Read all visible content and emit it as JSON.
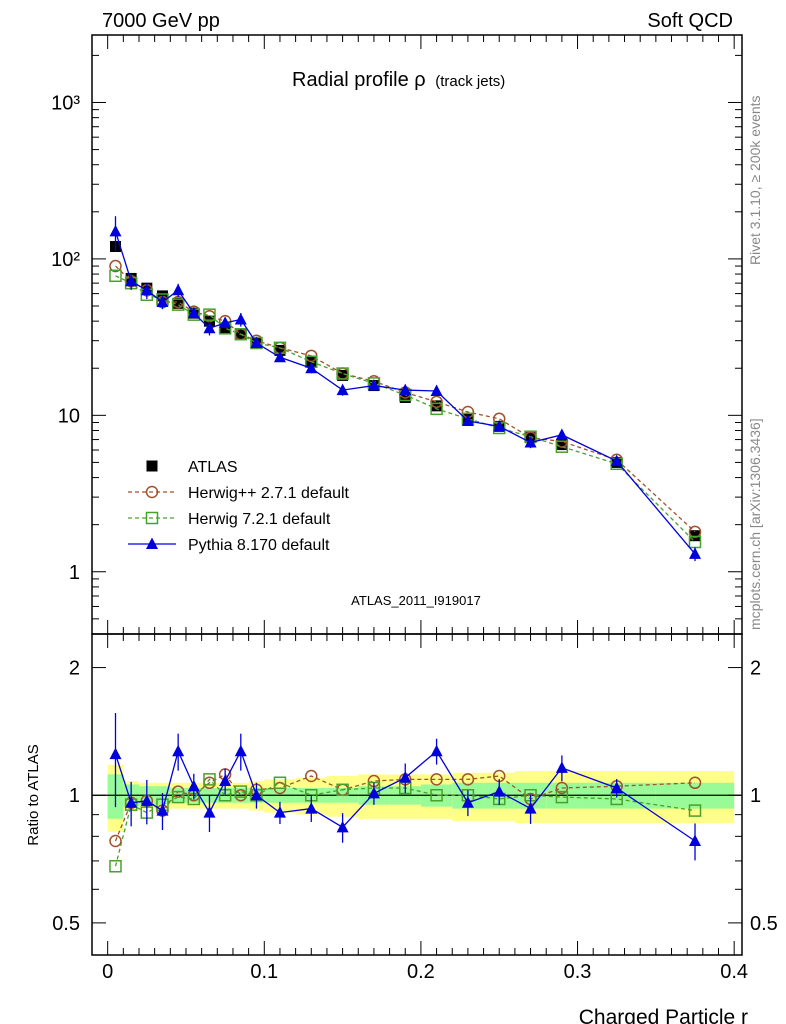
{
  "header": {
    "left": "7000 GeV pp",
    "right": "Soft QCD"
  },
  "side_labels": {
    "rivet": "Rivet 3.1.10, ≥ 200k events",
    "mcplots": "mcplots.cern.ch [arXiv:1306.3436]"
  },
  "chart_data": [
    {
      "type": "scatter",
      "panel": "main",
      "title": "Radial profile ρ",
      "title_suffix": "(track jets)",
      "watermark": "ATLAS_2011_I919017",
      "y_scale": "log",
      "ylim": [
        0.4,
        2700
      ],
      "xlim": [
        -0.01,
        0.405
      ],
      "y_tick_labels": [
        "1",
        "10",
        "10²",
        "10³"
      ],
      "y_tick_values": [
        1,
        10,
        100,
        1000
      ],
      "legend_position": "lower-left",
      "x": [
        0.005,
        0.015,
        0.025,
        0.035,
        0.045,
        0.055,
        0.065,
        0.075,
        0.085,
        0.095,
        0.11,
        0.13,
        0.15,
        0.17,
        0.19,
        0.21,
        0.23,
        0.25,
        0.27,
        0.29,
        0.325,
        0.375
      ],
      "series": [
        {
          "name": "ATLAS",
          "style": "data",
          "color": "#000000",
          "marker": "square-filled",
          "values": [
            120,
            75,
            65,
            58,
            52,
            45,
            40,
            36,
            33,
            29,
            26,
            22,
            18,
            15.5,
            13,
            11.5,
            9.5,
            8.5,
            7.2,
            6.5,
            5,
            1.7
          ]
        },
        {
          "name": "Herwig++ 2.7.1 default",
          "style": "dashed",
          "color": "#a0522d",
          "marker": "circle-open",
          "values": [
            90,
            72,
            63,
            53,
            53,
            46,
            43,
            40,
            33,
            30,
            27,
            24,
            18.5,
            16.5,
            14,
            12.2,
            10.5,
            9.5,
            7.2,
            6.8,
            5.2,
            1.8
          ]
        },
        {
          "name": "Herwig 7.2.1 default",
          "style": "dashed",
          "color": "#4aa02c",
          "marker": "square-open",
          "values": [
            78,
            70,
            59,
            55,
            51,
            44,
            44,
            36,
            33,
            29,
            27,
            22,
            18.5,
            16,
            13.5,
            11,
            9.5,
            8.3,
            7.3,
            6.3,
            4.9,
            1.55
          ]
        },
        {
          "name": "Pythia 8.170 default",
          "style": "solid",
          "color": "#0000dd",
          "marker": "triangle-filled",
          "values": [
            150,
            72,
            63,
            53,
            63,
            45,
            36,
            39,
            41,
            29,
            23.5,
            20,
            14.5,
            15.5,
            14.5,
            14.3,
            9.2,
            8.5,
            6.7,
            7.5,
            5.1,
            1.3
          ],
          "errors_rel": [
            0.25,
            0.12,
            0.12,
            0.1,
            0.1,
            0.07,
            0.1,
            0.07,
            0.1,
            0.07,
            0.06,
            0.07,
            0.08,
            0.06,
            0.08,
            0.07,
            0.07,
            0.07,
            0.08,
            0.07,
            0.05,
            0.1
          ]
        }
      ]
    },
    {
      "type": "scatter",
      "panel": "ratio",
      "ylabel": "Ratio to ATLAS",
      "xlabel": "Charged Particle r",
      "ylim": [
        0.42,
        2.4
      ],
      "xlim": [
        -0.01,
        0.405
      ],
      "y_scale": "log",
      "y_tick_labels": [
        "0.5",
        "1",
        "2"
      ],
      "y_tick_values": [
        0.5,
        1,
        2
      ],
      "x_tick_labels": [
        "0",
        "0.1",
        "0.2",
        "0.3",
        "0.4"
      ],
      "x_tick_values": [
        0,
        0.1,
        0.2,
        0.3,
        0.4
      ],
      "bands": {
        "bin_edges": [
          0,
          0.01,
          0.02,
          0.03,
          0.04,
          0.05,
          0.06,
          0.07,
          0.08,
          0.09,
          0.1,
          0.12,
          0.14,
          0.16,
          0.18,
          0.2,
          0.22,
          0.24,
          0.26,
          0.28,
          0.3,
          0.35,
          0.4
        ],
        "green_half": [
          0.12,
          0.06,
          0.05,
          0.05,
          0.04,
          0.04,
          0.04,
          0.04,
          0.04,
          0.04,
          0.04,
          0.04,
          0.04,
          0.05,
          0.05,
          0.06,
          0.07,
          0.07,
          0.07,
          0.07,
          0.07,
          0.07
        ],
        "yellow_half": [
          0.18,
          0.08,
          0.07,
          0.07,
          0.07,
          0.07,
          0.07,
          0.07,
          0.07,
          0.08,
          0.09,
          0.1,
          0.11,
          0.12,
          0.12,
          0.12,
          0.13,
          0.13,
          0.14,
          0.14,
          0.14,
          0.14
        ],
        "green_color": "#98fb98",
        "yellow_color": "#fffe86"
      },
      "x": [
        0.005,
        0.015,
        0.025,
        0.035,
        0.045,
        0.055,
        0.065,
        0.075,
        0.085,
        0.095,
        0.11,
        0.13,
        0.15,
        0.17,
        0.19,
        0.21,
        0.23,
        0.25,
        0.27,
        0.29,
        0.325,
        0.375
      ],
      "series": [
        {
          "name": "Herwig++ 2.7.1 default",
          "style": "dashed",
          "color": "#a0522d",
          "marker": "circle-open",
          "values": [
            0.78,
            0.96,
            0.97,
            0.92,
            1.02,
            1.0,
            1.07,
            1.12,
            1.0,
            1.03,
            1.04,
            1.11,
            1.03,
            1.08,
            1.09,
            1.09,
            1.09,
            1.11,
            0.98,
            1.04,
            1.05,
            1.07
          ]
        },
        {
          "name": "Herwig 7.2.1 default",
          "style": "dashed",
          "color": "#4aa02c",
          "marker": "square-open",
          "values": [
            0.68,
            0.95,
            0.91,
            0.95,
            0.99,
            0.98,
            1.09,
            1.0,
            1.02,
            1.0,
            1.07,
            1.0,
            1.03,
            1.04,
            1.04,
            1.0,
            1.0,
            0.98,
            1.0,
            0.99,
            0.98,
            0.92
          ]
        },
        {
          "name": "Pythia 8.170 default",
          "style": "solid",
          "color": "#0000dd",
          "marker": "triangle-filled",
          "values": [
            1.25,
            0.96,
            0.97,
            0.92,
            1.27,
            1.05,
            0.91,
            1.08,
            1.27,
            1.0,
            0.91,
            0.93,
            0.84,
            1.01,
            1.1,
            1.27,
            0.96,
            1.02,
            0.93,
            1.16,
            1.04,
            0.78
          ]
        }
      ]
    }
  ]
}
